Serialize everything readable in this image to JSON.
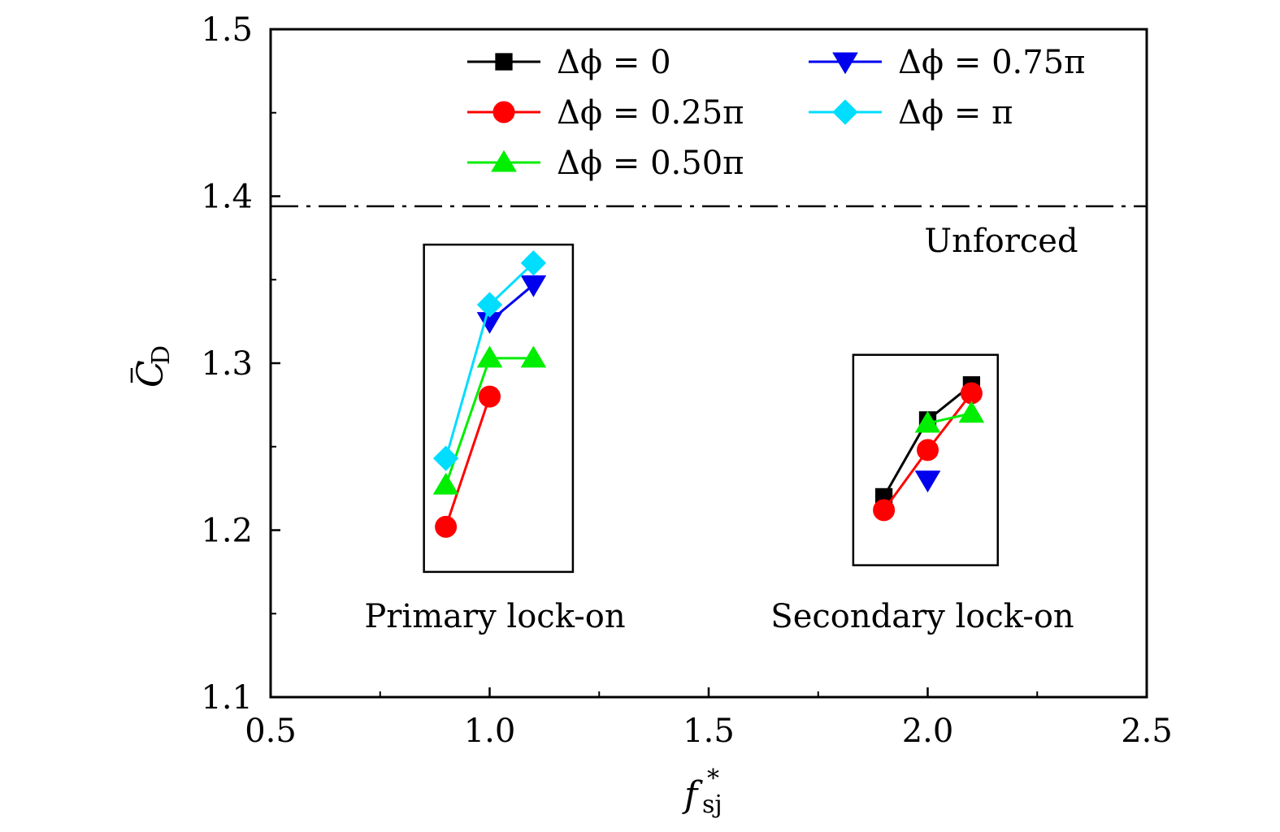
{
  "chart_data": {
    "type": "line",
    "xlabel": "f",
    "xlabel_sub": "sj",
    "xlabel_sup": "*",
    "ylabel": "C",
    "ylabel_sub": "D",
    "xlim": [
      0.5,
      2.5
    ],
    "ylim": [
      1.1,
      1.5
    ],
    "x_ticks": [
      "0.5",
      "1.0",
      "1.5",
      "2.0",
      "2.5"
    ],
    "y_ticks": [
      "1.1",
      "1.2",
      "1.3",
      "1.4",
      "1.5"
    ],
    "grid": false,
    "legend_position": "top",
    "reference_line": {
      "label": "Unforced",
      "y": 1.394,
      "style": "dash-dot"
    },
    "annotations": [
      {
        "text": "Primary lock-on",
        "x_range": [
          0.85,
          1.19
        ],
        "y_range": [
          1.175,
          1.371
        ]
      },
      {
        "text": "Secondary lock-on",
        "x_range": [
          1.83,
          2.16
        ],
        "y_range": [
          1.179,
          1.305
        ]
      }
    ],
    "series": [
      {
        "name": "Δϕ = 0",
        "color": "#000000",
        "marker": "square",
        "segments": [
          {
            "x": [
              1.9,
              2.0,
              2.1
            ],
            "y": [
              1.22,
              1.266,
              1.287
            ]
          }
        ]
      },
      {
        "name": "Δϕ = 0.25π",
        "color": "#ff0000",
        "marker": "circle",
        "segments": [
          {
            "x": [
              0.9,
              1.0
            ],
            "y": [
              1.202,
              1.28
            ]
          },
          {
            "x": [
              1.9,
              2.0,
              2.1
            ],
            "y": [
              1.212,
              1.248,
              1.282
            ]
          }
        ]
      },
      {
        "name": "Δϕ = 0.50π",
        "color": "#00ee00",
        "marker": "triangle-up",
        "segments": [
          {
            "x": [
              0.9,
              1.0,
              1.1
            ],
            "y": [
              1.227,
              1.303,
              1.303
            ]
          },
          {
            "x": [
              2.0,
              2.1
            ],
            "y": [
              1.264,
              1.27
            ]
          }
        ]
      },
      {
        "name": "Δϕ = 0.75π",
        "color": "#0000ee",
        "marker": "triangle-down",
        "segments": [
          {
            "x": [
              1.0,
              1.1
            ],
            "y": [
              1.325,
              1.347
            ]
          },
          {
            "x": [
              2.0
            ],
            "y": [
              1.23
            ]
          }
        ]
      },
      {
        "name": "Δϕ = π",
        "color": "#00ddff",
        "marker": "diamond",
        "segments": [
          {
            "x": [
              0.9,
              1.0,
              1.1
            ],
            "y": [
              1.243,
              1.335,
              1.36
            ]
          }
        ]
      }
    ]
  }
}
